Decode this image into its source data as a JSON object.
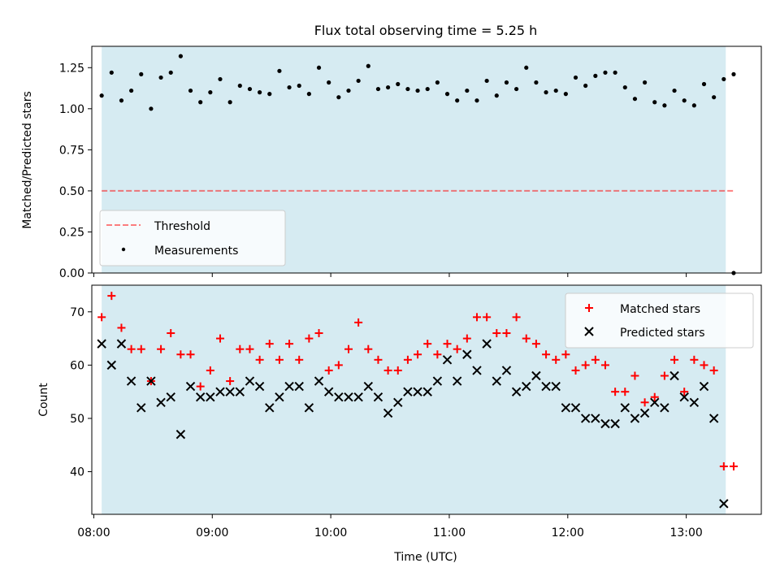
{
  "figure_title": "Flux total observing time = 5.25 h",
  "colors": {
    "observing_band": "#add8e6",
    "threshold": "#ff0000",
    "measurements": "#000000",
    "matched": "#ff0000",
    "predicted": "#000000"
  },
  "chart_data": [
    {
      "type": "scatter",
      "ylabel": "Matched/Predicted stars",
      "ylim": [
        0,
        1.38
      ],
      "yticks": [
        0.0,
        0.25,
        0.5,
        0.75,
        1.0,
        1.25
      ],
      "ytick_labels": [
        "0.00",
        "0.25",
        "0.50",
        "0.75",
        "1.00",
        "1.25"
      ],
      "x_range": [
        "07:59",
        "13:38"
      ],
      "shaded_interval": [
        "08:04",
        "13:20"
      ],
      "legend_position": "lower-left",
      "threshold": {
        "name": "Threshold",
        "value": 0.5,
        "x_range": [
          "08:04",
          "13:24"
        ],
        "style": "dashed"
      },
      "series": [
        {
          "name": "Measurements",
          "x": [
            "08:04",
            "08:09",
            "08:14",
            "08:19",
            "08:24",
            "08:29",
            "08:34",
            "08:39",
            "08:44",
            "08:49",
            "08:54",
            "08:59",
            "09:04",
            "09:09",
            "09:14",
            "09:19",
            "09:24",
            "09:29",
            "09:34",
            "09:39",
            "09:44",
            "09:49",
            "09:54",
            "09:59",
            "10:04",
            "10:09",
            "10:14",
            "10:19",
            "10:24",
            "10:29",
            "10:34",
            "10:39",
            "10:44",
            "10:49",
            "10:54",
            "10:59",
            "11:04",
            "11:09",
            "11:14",
            "11:19",
            "11:24",
            "11:29",
            "11:34",
            "11:39",
            "11:44",
            "11:49",
            "11:54",
            "11:59",
            "12:04",
            "12:09",
            "12:14",
            "12:19",
            "12:24",
            "12:29",
            "12:34",
            "12:39",
            "12:44",
            "12:49",
            "12:54",
            "12:59",
            "13:04",
            "13:09",
            "13:14",
            "13:19",
            "13:24"
          ],
          "values": [
            1.08,
            1.22,
            1.05,
            1.11,
            1.21,
            1.0,
            1.19,
            1.22,
            1.32,
            1.11,
            1.04,
            1.1,
            1.18,
            1.04,
            1.14,
            1.12,
            1.1,
            1.09,
            1.23,
            1.13,
            1.14,
            1.09,
            1.25,
            1.16,
            1.07,
            1.11,
            1.17,
            1.26,
            1.12,
            1.13,
            1.15,
            1.12,
            1.11,
            1.12,
            1.16,
            1.09,
            1.05,
            1.11,
            1.05,
            1.17,
            1.08,
            1.16,
            1.12,
            1.25,
            1.16,
            1.1,
            1.11,
            1.09,
            1.19,
            1.14,
            1.2,
            1.22,
            1.22,
            1.13,
            1.06,
            1.16,
            1.04,
            1.02,
            1.11,
            1.05,
            1.02,
            1.15,
            1.07,
            1.18,
            1.21
          ]
        },
        {
          "name": "",
          "x": [
            "13:24"
          ],
          "values": [
            0.0
          ]
        }
      ]
    },
    {
      "type": "scatter",
      "xlabel": "Time (UTC)",
      "ylabel": "Count",
      "ylim": [
        32,
        75
      ],
      "yticks": [
        40,
        50,
        60,
        70
      ],
      "x_range": [
        "07:59",
        "13:38"
      ],
      "xticks": [
        "08:00",
        "09:00",
        "10:00",
        "11:00",
        "12:00",
        "13:00"
      ],
      "shaded_interval": [
        "08:04",
        "13:20"
      ],
      "legend_position": "top-right",
      "series": [
        {
          "name": "Matched stars",
          "marker": "plus",
          "x": [
            "08:04",
            "08:09",
            "08:14",
            "08:19",
            "08:24",
            "08:29",
            "08:34",
            "08:39",
            "08:44",
            "08:49",
            "08:54",
            "08:59",
            "09:04",
            "09:09",
            "09:14",
            "09:19",
            "09:24",
            "09:29",
            "09:34",
            "09:39",
            "09:44",
            "09:49",
            "09:54",
            "09:59",
            "10:04",
            "10:09",
            "10:14",
            "10:19",
            "10:24",
            "10:29",
            "10:34",
            "10:39",
            "10:44",
            "10:49",
            "10:54",
            "10:59",
            "11:04",
            "11:09",
            "11:14",
            "11:19",
            "11:24",
            "11:29",
            "11:34",
            "11:39",
            "11:44",
            "11:49",
            "11:54",
            "11:59",
            "12:04",
            "12:09",
            "12:14",
            "12:19",
            "12:24",
            "12:29",
            "12:34",
            "12:39",
            "12:44",
            "12:49",
            "12:54",
            "12:59",
            "13:04",
            "13:09",
            "13:14",
            "13:19",
            "13:24"
          ],
          "values": [
            69,
            73,
            67,
            63,
            63,
            57,
            63,
            66,
            62,
            62,
            56,
            59,
            65,
            57,
            63,
            63,
            61,
            64,
            61,
            64,
            61,
            65,
            66,
            59,
            60,
            63,
            68,
            63,
            61,
            59,
            59,
            61,
            62,
            64,
            62,
            64,
            63,
            65,
            69,
            69,
            66,
            66,
            69,
            65,
            64,
            62,
            61,
            62,
            59,
            60,
            61,
            60,
            55,
            55,
            58,
            53,
            54,
            58,
            61,
            55,
            61,
            60,
            59,
            41,
            41
          ]
        },
        {
          "name": "Predicted stars",
          "marker": "x",
          "x": [
            "08:04",
            "08:09",
            "08:14",
            "08:19",
            "08:24",
            "08:29",
            "08:34",
            "08:39",
            "08:44",
            "08:49",
            "08:54",
            "08:59",
            "09:04",
            "09:09",
            "09:14",
            "09:19",
            "09:24",
            "09:29",
            "09:34",
            "09:39",
            "09:44",
            "09:49",
            "09:54",
            "09:59",
            "10:04",
            "10:09",
            "10:14",
            "10:19",
            "10:24",
            "10:29",
            "10:34",
            "10:39",
            "10:44",
            "10:49",
            "10:54",
            "10:59",
            "11:04",
            "11:09",
            "11:14",
            "11:19",
            "11:24",
            "11:29",
            "11:34",
            "11:39",
            "11:44",
            "11:49",
            "11:54",
            "11:59",
            "12:04",
            "12:09",
            "12:14",
            "12:19",
            "12:24",
            "12:29",
            "12:34",
            "12:39",
            "12:44",
            "12:49",
            "12:54",
            "12:59",
            "13:04",
            "13:09",
            "13:14",
            "13:19"
          ],
          "values": [
            64,
            60,
            64,
            57,
            52,
            57,
            53,
            54,
            47,
            56,
            54,
            54,
            55,
            55,
            55,
            57,
            56,
            52,
            54,
            56,
            56,
            52,
            57,
            55,
            54,
            54,
            54,
            56,
            54,
            51,
            53,
            55,
            55,
            55,
            57,
            61,
            57,
            62,
            59,
            64,
            57,
            59,
            55,
            56,
            58,
            56,
            56,
            52,
            52,
            50,
            50,
            49,
            49,
            52,
            50,
            51,
            53,
            52,
            58,
            54,
            53,
            56,
            50,
            34
          ]
        }
      ]
    }
  ]
}
